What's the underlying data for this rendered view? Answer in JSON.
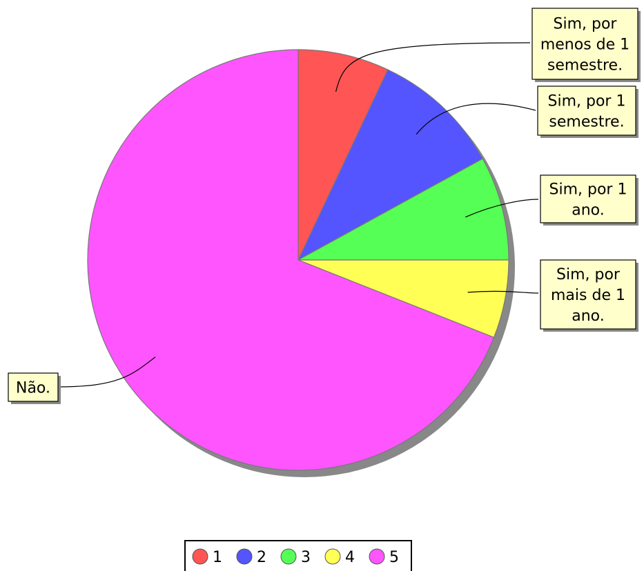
{
  "chart_data": {
    "type": "pie",
    "title": "",
    "slices": [
      {
        "legend": "1",
        "label": [
          "Sim, por",
          "menos de 1",
          "semestre."
        ],
        "value": 7,
        "color": "#ff5555"
      },
      {
        "legend": "2",
        "label": [
          "Sim, por 1",
          "semestre."
        ],
        "value": 10,
        "color": "#5555ff"
      },
      {
        "legend": "3",
        "label": [
          "Sim, por 1",
          "ano."
        ],
        "value": 8,
        "color": "#55ff55"
      },
      {
        "legend": "4",
        "label": [
          "Sim, por",
          "mais de 1",
          "ano."
        ],
        "value": 6,
        "color": "#ffff55"
      },
      {
        "legend": "5",
        "label": [
          "Não."
        ],
        "value": 69,
        "color": "#ff55ff"
      }
    ],
    "legend_placement": "bottom"
  }
}
